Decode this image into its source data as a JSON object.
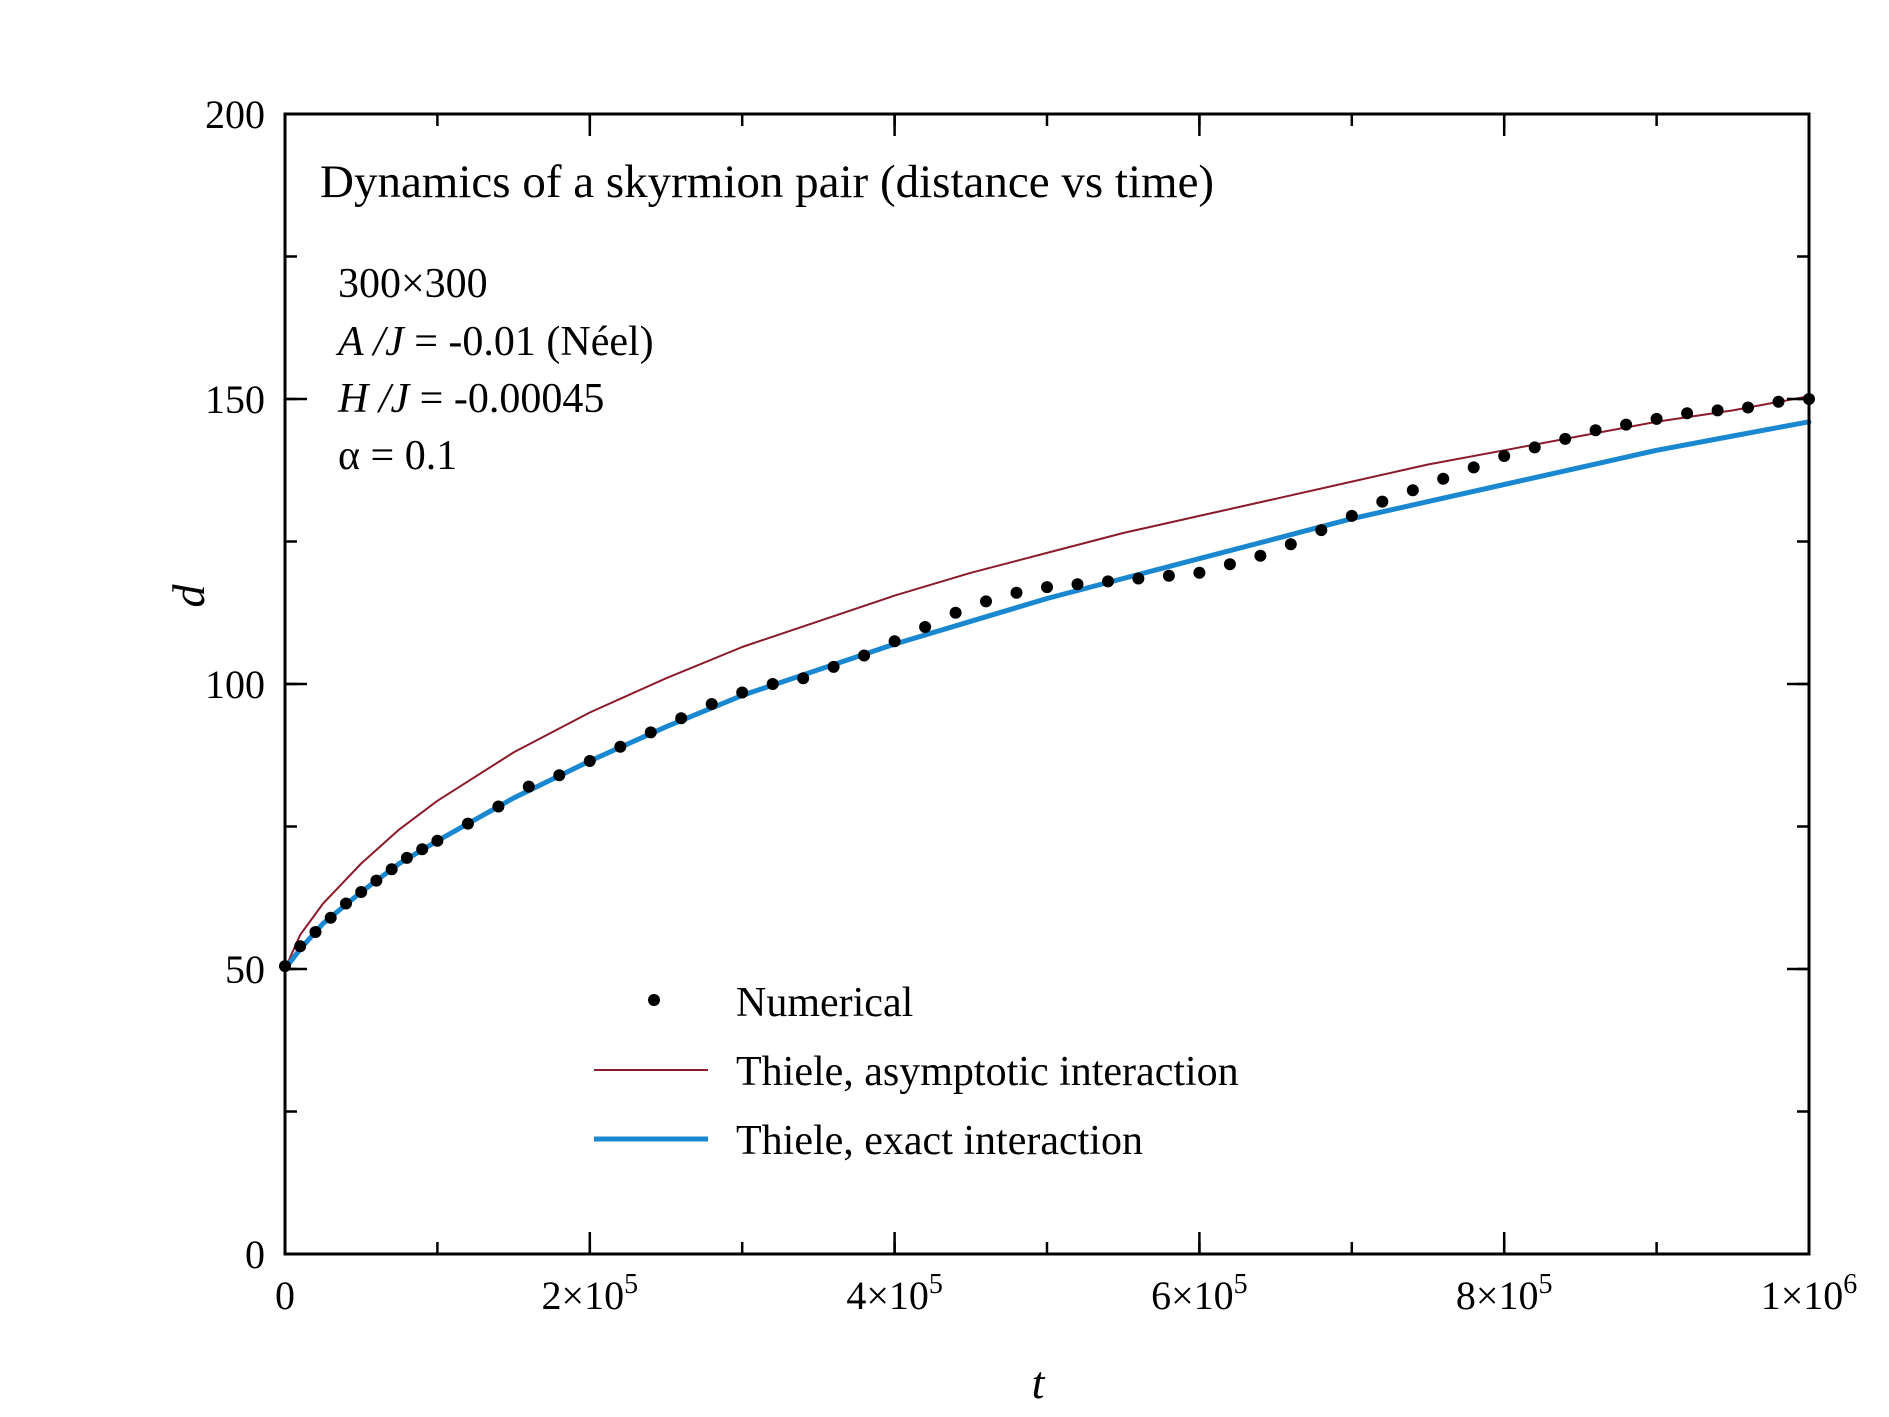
{
  "chart_data": {
    "type": "scatter",
    "title": "Dynamics of a skyrmion pair (distance vs time)",
    "xlabel": "t",
    "ylabel": "d",
    "xlim": [
      0,
      1000000
    ],
    "ylim": [
      0,
      200
    ],
    "x_ticks": [
      {
        "value": 0,
        "base": "0",
        "exp": ""
      },
      {
        "value": 200000,
        "base": "2×10",
        "exp": "5"
      },
      {
        "value": 400000,
        "base": "4×10",
        "exp": "5"
      },
      {
        "value": 600000,
        "base": "6×10",
        "exp": "5"
      },
      {
        "value": 800000,
        "base": "8×10",
        "exp": "5"
      },
      {
        "value": 1000000,
        "base": "1×10",
        "exp": "6"
      }
    ],
    "x_minor_step": 100000,
    "y_ticks": [
      0,
      50,
      100,
      150,
      200
    ],
    "y_minor_step": 25,
    "annotations": {
      "lattice": "300×300",
      "dmi_var": "A /J",
      "dmi_value": " = -0.01 (Néel)",
      "field_var": "H /J",
      "field_value": " = -0.00045",
      "damping": "α = 0.1"
    },
    "legend": {
      "location": "bottom-center",
      "entries": [
        "Numerical",
        "Thiele, asymptotic interaction",
        "Thiele, exact interaction"
      ]
    },
    "series": [
      {
        "name": "Numerical",
        "kind": "points",
        "color": "#000000",
        "x": [
          0,
          10000,
          20000,
          30000,
          40000,
          50000,
          60000,
          70000,
          80000,
          90000,
          100000,
          120000,
          140000,
          160000,
          180000,
          200000,
          220000,
          240000,
          260000,
          280000,
          300000,
          320000,
          340000,
          360000,
          380000,
          400000,
          420000,
          440000,
          460000,
          480000,
          500000,
          520000,
          540000,
          560000,
          580000,
          600000,
          620000,
          640000,
          660000,
          680000,
          700000,
          720000,
          740000,
          760000,
          780000,
          800000,
          820000,
          840000,
          860000,
          880000,
          900000,
          920000,
          940000,
          960000,
          980000,
          1000000
        ],
        "y": [
          50.5,
          54.0,
          56.5,
          59.0,
          61.5,
          63.5,
          65.5,
          67.5,
          69.5,
          71.0,
          72.5,
          75.5,
          78.5,
          82.0,
          84.0,
          86.5,
          89.0,
          91.5,
          94.0,
          96.5,
          98.5,
          100.0,
          101.0,
          103.0,
          105.0,
          107.5,
          110.0,
          112.5,
          114.5,
          116.0,
          117.0,
          117.5,
          118.0,
          118.5,
          119.0,
          119.5,
          121.0,
          122.5,
          124.5,
          127.0,
          129.5,
          132.0,
          134.0,
          136.0,
          138.0,
          140.0,
          141.5,
          143.0,
          144.5,
          145.5,
          146.5,
          147.5,
          148.0,
          148.5,
          149.5,
          150.0
        ]
      },
      {
        "name": "Thiele, asymptotic interaction",
        "kind": "line",
        "color": "#8b1a2b",
        "width": "thin",
        "x": [
          0,
          10000,
          25000,
          50000,
          75000,
          100000,
          150000,
          200000,
          250000,
          300000,
          350000,
          400000,
          450000,
          500000,
          550000,
          600000,
          650000,
          700000,
          750000,
          800000,
          850000,
          900000,
          950000,
          1000000
        ],
        "y": [
          50,
          56,
          61.5,
          68.5,
          74.5,
          79.5,
          88,
          95,
          101,
          106.5,
          111,
          115.5,
          119.5,
          123,
          126.5,
          129.5,
          132.5,
          135.5,
          138.5,
          141,
          143.5,
          146,
          148,
          150.5
        ]
      },
      {
        "name": "Thiele, exact interaction",
        "kind": "line",
        "color": "#1a88d0",
        "width": "thick",
        "x": [
          0,
          10000,
          25000,
          50000,
          75000,
          100000,
          150000,
          200000,
          250000,
          300000,
          350000,
          400000,
          450000,
          500000,
          550000,
          600000,
          650000,
          700000,
          750000,
          800000,
          850000,
          900000,
          950000,
          1000000
        ],
        "y": [
          50,
          53.5,
          58,
          63.5,
          68.5,
          72.5,
          80,
          86.5,
          92.5,
          98,
          102.5,
          107,
          111,
          115,
          118.5,
          122,
          125.5,
          129,
          132,
          135,
          138,
          141,
          143.5,
          146
        ]
      }
    ]
  }
}
